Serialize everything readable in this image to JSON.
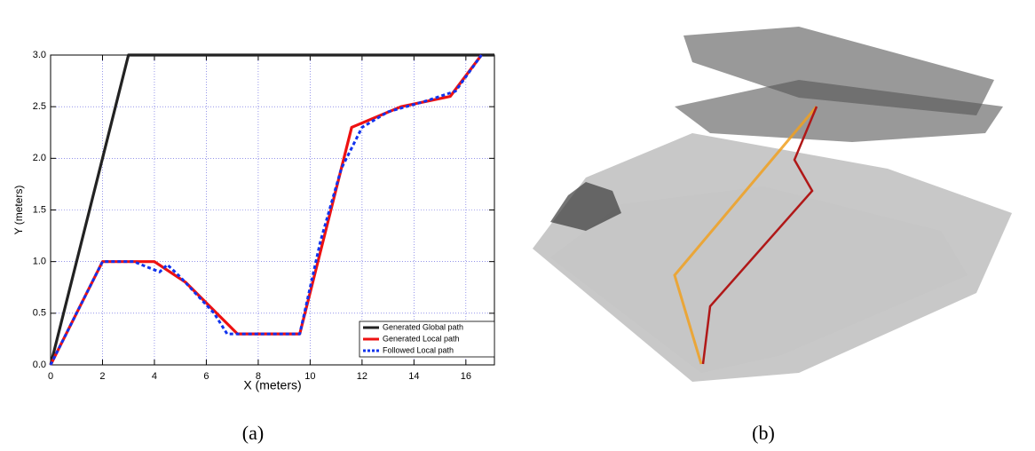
{
  "chart_data": {
    "type": "line",
    "xlabel": "X (meters)",
    "ylabel": "Y (meters)",
    "xlim": [
      0,
      17.1
    ],
    "ylim": [
      0,
      3.0
    ],
    "xticks": [
      0,
      2,
      4,
      6,
      8,
      10,
      12,
      14,
      16
    ],
    "yticks": [
      {
        "value": 0,
        "label": "0.0"
      },
      0.5,
      {
        "value": 1,
        "label": "1.0"
      },
      1.5,
      {
        "value": 2,
        "label": "2.0"
      },
      2.5,
      {
        "value": 3,
        "label": "3.0"
      }
    ],
    "grid": true,
    "legend": "lower right",
    "series": [
      {
        "name": "Generated Global path",
        "color": "#222222",
        "dash": false,
        "x": [
          0,
          3,
          17.1
        ],
        "values": [
          0,
          3,
          3
        ]
      },
      {
        "name": "Generated Local path",
        "color": "#ee1111",
        "dash": false,
        "x": [
          0,
          1,
          2,
          4,
          5.2,
          7.2,
          9.6,
          11.6,
          13.5,
          15.4,
          16.6
        ],
        "values": [
          0,
          0.5,
          1,
          1,
          0.8,
          0.3,
          0.3,
          2.3,
          2.5,
          2.6,
          3.0
        ]
      },
      {
        "name": "Followed Local path",
        "color": "#1133ee",
        "dash": true,
        "x": [
          0,
          1,
          2,
          3.2,
          4.2,
          4.5,
          5,
          6.3,
          6.8,
          9.6,
          10.4,
          11.2,
          12,
          13,
          14.4,
          15.6,
          16.6
        ],
        "values": [
          0,
          0.5,
          1,
          1,
          0.9,
          0.97,
          0.85,
          0.5,
          0.3,
          0.3,
          1.2,
          1.9,
          2.3,
          2.45,
          2.55,
          2.65,
          3.0
        ]
      }
    ]
  },
  "captions": [
    "(a)",
    "(b)"
  ]
}
